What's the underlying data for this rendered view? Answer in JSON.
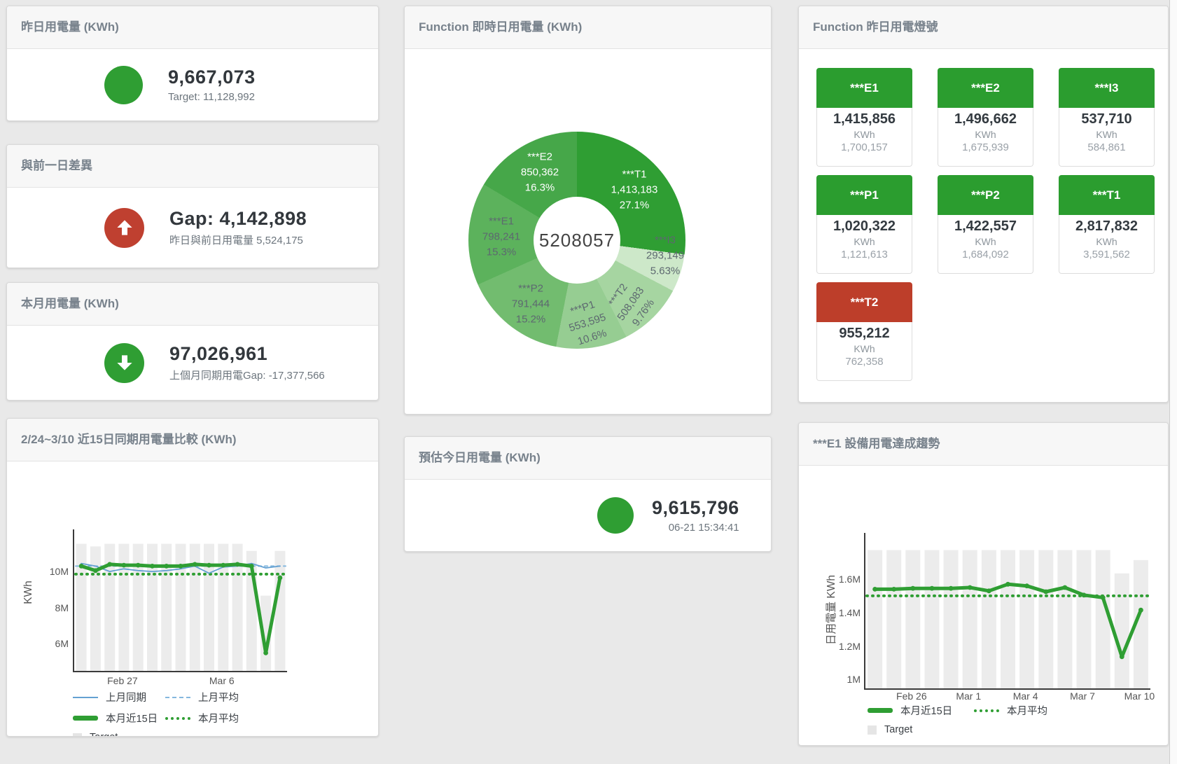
{
  "panels": {
    "yesterday": {
      "title": "昨日用電量 (KWh)",
      "value": "9,667,073",
      "subtitle": "Target: 11,128,992",
      "indicator": "green-circle"
    },
    "gap": {
      "title": "與前一日差異",
      "value": "Gap: 4,142,898",
      "subtitle": "昨日與前日用電量 5,524,175",
      "indicator": "red-circle-up-arrow"
    },
    "month": {
      "title": "本月用電量 (KWh)",
      "value": "97,026,961",
      "subtitle": "上個月同期用電Gap: -17,377,566",
      "indicator": "green-circle-down-arrow"
    },
    "estimate": {
      "title": "預估今日用電量 (KWh)",
      "value": "9,615,796",
      "subtitle": "06-21 15:34:41",
      "indicator": "green-circle"
    },
    "donut": {
      "title": "Function 即時日用電量 (KWh)"
    },
    "lights": {
      "title": "Function 昨日用電燈號",
      "unit": "KWh",
      "tiles": [
        {
          "label": "***E1",
          "value": "1,415,856",
          "target": "1,700,157",
          "status": "green"
        },
        {
          "label": "***E2",
          "value": "1,496,662",
          "target": "1,675,939",
          "status": "green"
        },
        {
          "label": "***I3",
          "value": "537,710",
          "target": "584,861",
          "status": "green"
        },
        {
          "label": "***P1",
          "value": "1,020,322",
          "target": "1,121,613",
          "status": "green"
        },
        {
          "label": "***P2",
          "value": "1,422,557",
          "target": "1,684,092",
          "status": "green"
        },
        {
          "label": "***T1",
          "value": "2,817,832",
          "target": "3,591,562",
          "status": "green"
        },
        {
          "label": "***T2",
          "value": "955,212",
          "target": "762,358",
          "status": "red"
        }
      ]
    },
    "compare": {
      "title": "2/24~3/10 近15日同期用電量比較 (KWh)",
      "legend": [
        {
          "label": "上月同期",
          "swatch": "sw-line-blue"
        },
        {
          "label": "上月平均",
          "swatch": "sw-dash-blue"
        },
        {
          "label": "本月近15日",
          "swatch": "sw-line-green-thick"
        },
        {
          "label": "本月平均",
          "swatch": "sw-dash-green"
        },
        {
          "label": "Target",
          "swatch": "sw-box-gray"
        }
      ]
    },
    "trend": {
      "title": "***E1 設備用電達成趨勢",
      "legend": [
        {
          "label": "本月近15日",
          "swatch": "sw-line-green-thick"
        },
        {
          "label": "本月平均",
          "swatch": "sw-dash-green"
        },
        {
          "label": "Target",
          "swatch": "sw-box-gray"
        }
      ]
    }
  },
  "colors": {
    "green": "#2f9e33",
    "red": "#bf4030",
    "tile_green": "#2b9d2f",
    "tile_red": "#bd3e2a",
    "blue_line": "#64a1d2",
    "blue_dash": "#85b8de",
    "target_bar": "#ececec"
  },
  "chart_data": [
    {
      "type": "pie",
      "title": "Function 即時日用電量 (KWh)",
      "center_total": "5208057",
      "legend_position": "none",
      "slices": [
        {
          "name": "***T1",
          "value": 1413183,
          "pct": 27.1,
          "value_display": "1,413,183",
          "pct_display": "27.1%",
          "color": "#2f9e33"
        },
        {
          "name": "***I3",
          "value": 293149,
          "pct": 5.63,
          "value_display": "293,149",
          "pct_display": "5.63%",
          "color": "#cde8c9"
        },
        {
          "name": "***T2",
          "value": 508083,
          "pct": 9.76,
          "value_display": "508,083",
          "pct_display": "9.76%",
          "color": "#a6d5a1"
        },
        {
          "name": "***P1",
          "value": 553595,
          "pct": 10.6,
          "value_display": "553,595",
          "pct_display": "10.6%",
          "color": "#96cd92"
        },
        {
          "name": "***P2",
          "value": 791444,
          "pct": 15.2,
          "value_display": "791,444",
          "pct_display": "15.2%",
          "color": "#72bc6f"
        },
        {
          "name": "***E1",
          "value": 798241,
          "pct": 15.3,
          "value_display": "798,241",
          "pct_display": "15.3%",
          "color": "#5cb25c"
        },
        {
          "name": "***E2",
          "value": 850362,
          "pct": 16.3,
          "value_display": "850,362",
          "pct_display": "16.3%",
          "color": "#46a749"
        }
      ]
    },
    {
      "type": "line",
      "title": "2/24~3/10 近15日同期用電量比較 (KWh)",
      "xlabel": "",
      "ylabel": "KWh",
      "unit": "M KWh",
      "ylim": [
        4.5,
        12.4
      ],
      "grid": false,
      "categories": [
        "2/24",
        "2/25",
        "2/26",
        "2/27",
        "2/28",
        "3/1",
        "3/2",
        "3/3",
        "3/4",
        "3/5",
        "3/6",
        "3/7",
        "3/8",
        "3/9",
        "3/10"
      ],
      "target": [
        11.6,
        11.45,
        11.6,
        11.6,
        11.6,
        11.6,
        11.6,
        11.6,
        11.6,
        11.6,
        11.6,
        11.6,
        11.2,
        8.7,
        11.2
      ],
      "series": [
        {
          "name": "上月同期",
          "color": "#64a1d2",
          "values": [
            10.5,
            10.35,
            10.05,
            10.2,
            10.1,
            10.05,
            10.1,
            10.2,
            10.35,
            9.95,
            10.3,
            10.35,
            10.5,
            10.25,
            10.35
          ]
        },
        {
          "name": "本月近15日",
          "color": "#2f9e33",
          "values": [
            10.35,
            10.1,
            10.45,
            10.4,
            10.4,
            10.35,
            10.35,
            10.35,
            10.45,
            10.4,
            10.4,
            10.45,
            10.35,
            5.5,
            9.7
          ]
        }
      ],
      "averages": [
        {
          "name": "上月平均",
          "value": 10.35,
          "color": "#85b8de"
        },
        {
          "name": "本月平均",
          "value": 9.9,
          "color": "#2f9e33"
        }
      ],
      "yticks": [
        {
          "v": 6,
          "label": "6M"
        },
        {
          "v": 8,
          "label": "8M"
        },
        {
          "v": 10,
          "label": "10M"
        }
      ],
      "xticks": [
        {
          "i": 3,
          "label": "Feb 27"
        },
        {
          "i": 10,
          "label": "Mar 6"
        }
      ]
    },
    {
      "type": "line",
      "title": "***E1 設備用電達成趨勢",
      "xlabel": "",
      "ylabel": "日用電量 KWh",
      "unit": "M KWh",
      "ylim": [
        0.95,
        1.883
      ],
      "grid": false,
      "categories": [
        "2/24",
        "2/25",
        "2/26",
        "2/27",
        "2/28",
        "3/1",
        "3/2",
        "3/3",
        "3/4",
        "3/5",
        "3/6",
        "3/7",
        "3/8",
        "3/9",
        "3/10"
      ],
      "target": [
        1.78,
        1.78,
        1.78,
        1.78,
        1.78,
        1.78,
        1.78,
        1.78,
        1.78,
        1.78,
        1.78,
        1.78,
        1.78,
        1.64,
        1.72
      ],
      "series": [
        {
          "name": "本月近15日",
          "color": "#2f9e33",
          "values": [
            1.545,
            1.545,
            1.55,
            1.55,
            1.55,
            1.555,
            1.535,
            1.575,
            1.565,
            1.53,
            1.555,
            1.51,
            1.495,
            1.14,
            1.42
          ]
        }
      ],
      "averages": [
        {
          "name": "本月平均",
          "value": 1.505,
          "color": "#2f9e33"
        }
      ],
      "yticks": [
        {
          "v": 1,
          "label": "1M"
        },
        {
          "v": 1.2,
          "label": "1.2M"
        },
        {
          "v": 1.4,
          "label": "1.4M"
        },
        {
          "v": 1.6,
          "label": "1.6M"
        }
      ],
      "xticks": [
        {
          "i": 2,
          "label": "Feb 26"
        },
        {
          "i": 5,
          "label": "Mar 1"
        },
        {
          "i": 8,
          "label": "Mar 4"
        },
        {
          "i": 11,
          "label": "Mar 7"
        },
        {
          "i": 14,
          "label": "Mar 10"
        }
      ]
    }
  ]
}
